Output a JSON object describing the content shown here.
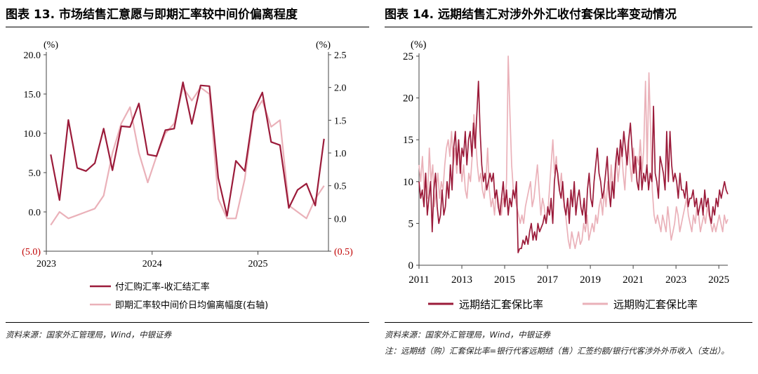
{
  "left": {
    "title": "图表 13. 市场结售汇意愿与即期汇率较中间价偏离程度",
    "source": "资料来源：国家外汇管理局，Wind，中银证券"
  },
  "right": {
    "title": "图表 14. 远期结售汇对涉外外汇收付套保比率变动情况",
    "source": "资料来源：国家外汇管理局，Wind，中银证券",
    "note": "注：远期结（购）汇套保比率=银行代客远期结（售）汇签约额/银行代客涉外外币收入（支出）。"
  },
  "chart_data": [
    {
      "type": "line",
      "ylabel_left": "(%)",
      "ylabel_right": "(%)",
      "y_left_ticks": [
        "20.0",
        "15.0",
        "10.0",
        "5.0",
        "0.0",
        "(5.0)"
      ],
      "y_right_ticks": [
        "2.5",
        "2.0",
        "1.5",
        "1.0",
        "0.5",
        "0.0",
        "(0.5)"
      ],
      "ylim_left": [
        -5,
        20
      ],
      "ylim_right": [
        -0.5,
        2.5
      ],
      "x_tick_labels": [
        "2023",
        "2024",
        "2025"
      ],
      "x_tick_index": [
        0,
        12,
        24
      ],
      "negative_tick_color": "#c00000",
      "grid": false,
      "legend_position": "bottom",
      "series": [
        {
          "name": "付汇购汇率-收汇结汇率",
          "axis": "left",
          "color": "#9b1b3a",
          "values": [
            7.3,
            1.5,
            11.7,
            5.6,
            5.2,
            6.2,
            10.6,
            5.3,
            10.9,
            10.8,
            13.8,
            7.3,
            7.1,
            10.4,
            10.6,
            16.5,
            11.2,
            16.1,
            16.0,
            4.3,
            -0.5,
            6.5,
            5.2,
            12.8,
            15.2,
            8.9,
            8.5,
            0.5,
            2.8,
            3.6,
            0.8,
            9.3
          ]
        },
        {
          "name": "即期汇率较中间价日均偏离幅度(右轴)",
          "axis": "right",
          "color": "#eab1b9",
          "values": [
            -0.1,
            0.1,
            0.0,
            0.05,
            0.1,
            0.15,
            0.35,
            1.0,
            1.45,
            1.7,
            1.0,
            0.55,
            0.95,
            1.3,
            1.45,
            2.0,
            1.8,
            2.0,
            1.9,
            0.3,
            0.0,
            0.0,
            0.6,
            1.6,
            1.8,
            1.4,
            1.5,
            0.2,
            0.1,
            0.0,
            0.3,
            0.5
          ]
        }
      ]
    },
    {
      "type": "line",
      "ylabel": "(%)",
      "y_ticks": [
        "25",
        "20",
        "15",
        "10",
        "5",
        "0"
      ],
      "ylim": [
        0,
        25
      ],
      "x_tick_labels": [
        "2011",
        "2013",
        "2015",
        "2017",
        "2019",
        "2021",
        "2023",
        "2025"
      ],
      "x_range": [
        2011.0,
        2025.42
      ],
      "grid": false,
      "legend_position": "bottom",
      "series": [
        {
          "name": "远期结汇套保比率",
          "color": "#9b1b3a",
          "values": [
            10,
            8,
            9,
            7,
            11,
            6,
            8,
            10,
            4,
            9,
            11,
            7,
            5,
            6,
            9,
            6,
            7,
            10,
            8,
            12,
            9,
            14,
            16,
            12,
            15,
            11,
            14,
            13,
            16,
            12,
            15,
            16,
            13,
            17,
            14,
            18,
            22,
            16,
            12,
            10,
            11,
            9,
            10,
            11,
            10,
            11,
            8,
            9,
            7,
            6,
            8,
            10,
            7,
            9,
            6,
            8,
            7,
            9,
            8,
            10,
            1.5,
            2,
            2,
            3,
            2.5,
            3.5,
            2.5,
            4,
            5,
            3,
            4,
            3,
            5,
            4,
            4.5,
            5,
            6,
            5,
            7,
            6,
            8,
            5,
            10,
            12,
            11,
            9,
            8,
            10,
            7,
            6,
            8,
            5,
            9,
            7,
            10,
            6,
            8,
            9,
            7,
            6,
            8,
            5,
            9,
            11,
            8,
            7,
            10,
            12,
            14,
            11,
            10,
            8,
            9,
            11,
            13,
            9,
            7,
            10,
            8,
            12,
            14,
            12,
            15,
            13,
            16,
            14,
            12,
            15,
            17,
            14,
            11,
            13,
            10,
            9,
            13,
            9,
            11,
            10,
            12,
            9,
            11,
            10,
            19,
            11,
            10,
            8,
            13,
            12,
            11,
            9,
            16,
            10,
            16,
            12,
            10,
            11,
            10,
            8,
            11,
            9,
            9,
            8,
            10,
            7,
            8,
            8,
            9,
            7,
            8,
            6,
            7,
            8,
            6,
            9,
            7,
            8,
            6,
            5,
            7,
            6,
            8,
            7,
            9,
            8,
            9,
            10,
            9,
            8.5
          ]
        },
        {
          "name": "远期购汇套保比率",
          "color": "#eab1b9",
          "values": [
            12,
            10,
            13,
            9,
            11,
            8,
            14,
            10,
            12,
            7,
            9,
            11,
            8,
            10,
            9,
            12,
            14,
            15,
            13,
            16,
            12,
            14,
            11,
            15,
            13,
            10,
            12,
            9,
            8,
            11,
            10,
            13,
            18,
            15,
            12,
            10,
            11,
            9,
            8,
            10,
            14,
            9,
            7,
            8,
            6,
            9,
            8,
            7,
            6,
            8,
            7,
            10,
            25,
            18,
            12,
            9,
            8,
            7,
            6,
            5,
            6,
            5,
            7,
            8,
            9,
            10,
            7,
            8,
            10,
            12,
            9,
            6,
            8,
            7,
            5,
            6,
            9,
            12,
            15,
            11,
            13,
            10,
            9,
            11,
            8,
            7,
            5,
            3,
            2,
            4,
            3,
            2,
            3,
            4,
            2.5,
            3,
            5,
            4,
            6,
            3,
            4,
            5,
            4,
            6,
            5,
            7,
            8,
            6,
            9,
            7,
            10,
            8,
            12,
            9,
            11,
            13,
            10,
            12,
            14,
            11,
            9,
            13,
            15,
            12,
            10,
            14,
            11,
            13,
            12,
            15,
            11,
            14,
            22,
            12,
            23,
            16,
            9,
            6,
            5,
            6,
            5,
            4,
            6,
            5,
            4,
            7,
            5,
            3,
            4,
            5,
            7,
            6,
            4,
            5,
            6,
            7,
            8,
            6,
            5,
            4,
            6,
            5,
            7,
            6,
            4,
            5,
            6,
            5,
            7,
            6,
            5,
            4,
            5,
            4,
            5,
            6,
            5,
            4,
            6,
            5,
            5.5
          ]
        }
      ]
    }
  ]
}
